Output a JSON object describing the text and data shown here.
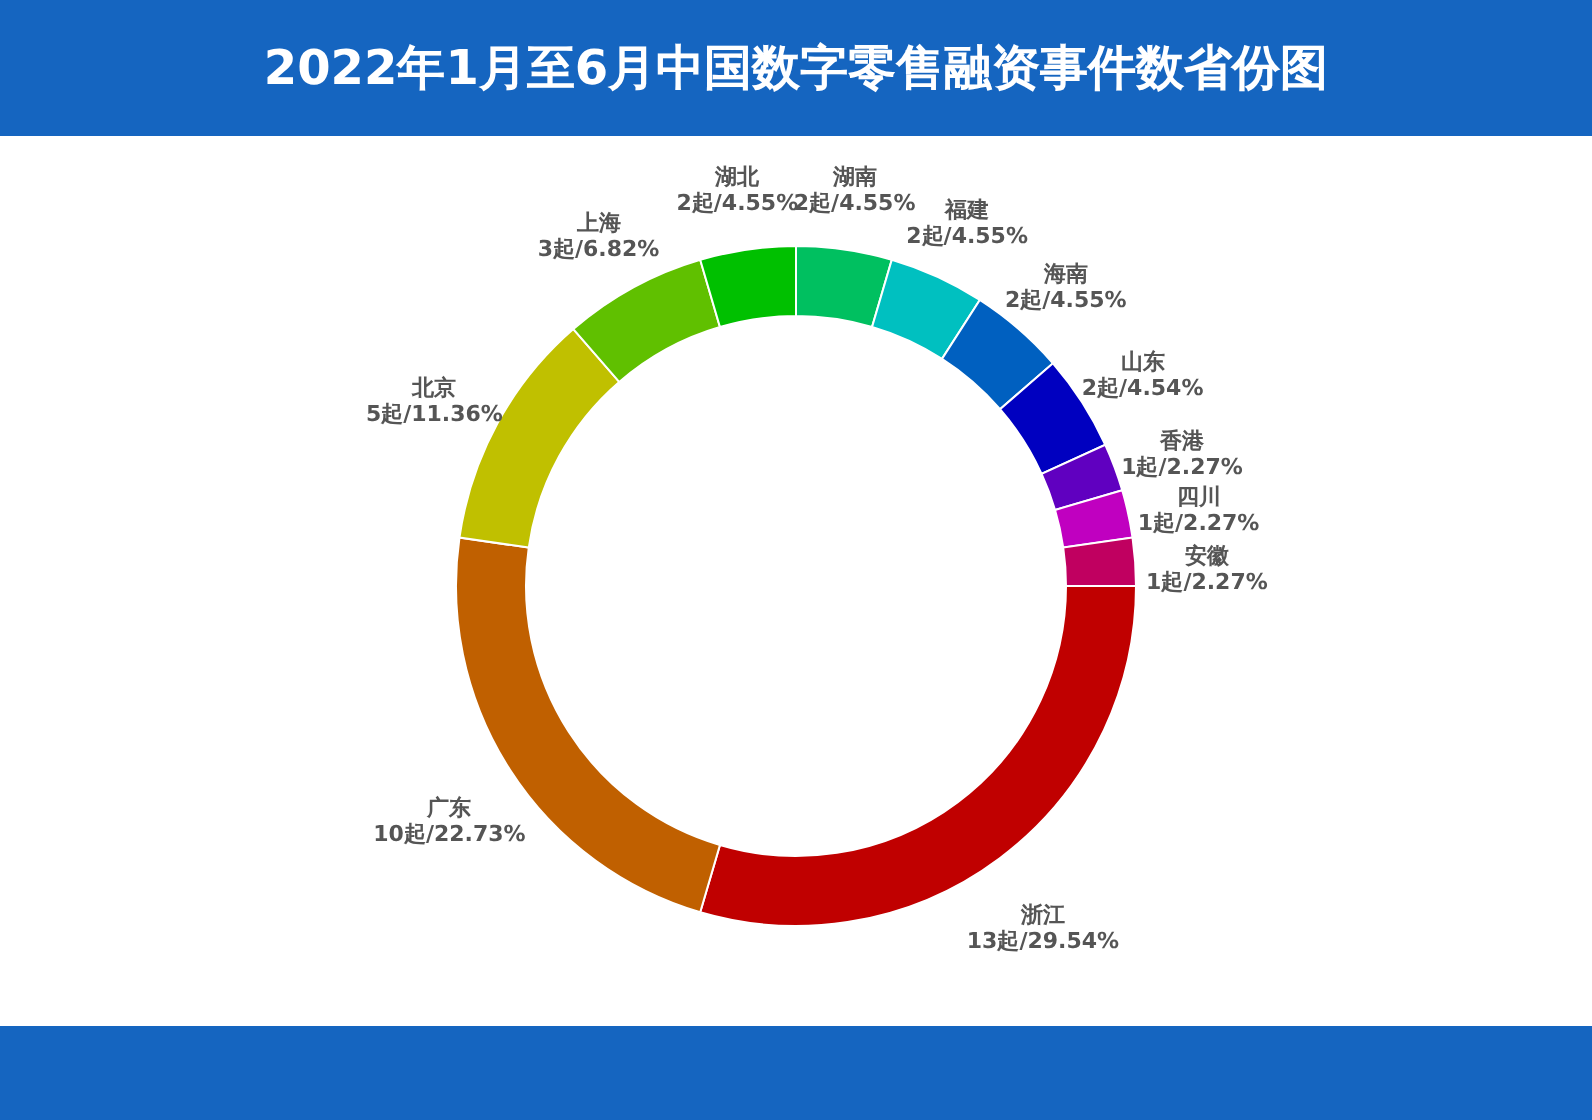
{
  "chart_data": {
    "type": "donut",
    "title": "2022年1月至6月中国数字零售融资事件数省份图",
    "categories": [
      "湖南",
      "福建",
      "海南",
      "山东",
      "香港",
      "四川",
      "安徽",
      "浙江",
      "广东",
      "北京",
      "上海",
      "湖北"
    ],
    "values": [
      2,
      2,
      2,
      2,
      1,
      1,
      1,
      13,
      10,
      5,
      3,
      2
    ],
    "value_labels": [
      "2起/4.55%",
      "2起/4.55%",
      "2起/4.55%",
      "2起/4.54%",
      "1起/2.27%",
      "1起/2.27%",
      "1起/2.27%",
      "13起/29.54%",
      "10起/22.73%",
      "5起/11.36%",
      "3起/6.82%",
      "2起/4.55%"
    ],
    "colors": [
      "#00c060",
      "#00c0c0",
      "#0060c0",
      "#0000c0",
      "#6000c0",
      "#c000c0",
      "#c00060",
      "#c00000",
      "#c06000",
      "#c0c000",
      "#60c000",
      "#00c000"
    ]
  }
}
